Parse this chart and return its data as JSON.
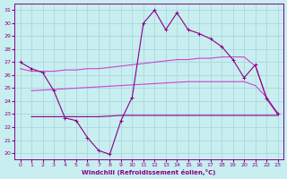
{
  "xlabel": "Windchill (Refroidissement éolien,°C)",
  "xlim": [
    -0.5,
    23.5
  ],
  "ylim": [
    19.5,
    31.5
  ],
  "xticks": [
    0,
    1,
    2,
    3,
    4,
    5,
    6,
    7,
    8,
    9,
    10,
    11,
    12,
    13,
    14,
    15,
    16,
    17,
    18,
    19,
    20,
    21,
    22,
    23
  ],
  "yticks": [
    20,
    21,
    22,
    23,
    24,
    25,
    26,
    27,
    28,
    29,
    30,
    31
  ],
  "bg_color": "#c8eef0",
  "grid_color": "#a8d8dc",
  "c_dark": "#880088",
  "c_mid": "#aa22aa",
  "c_light": "#cc44cc",
  "s1_x": [
    0,
    1,
    2,
    3,
    4,
    5,
    6,
    7,
    8,
    9,
    10,
    11,
    12,
    13,
    14,
    15,
    16,
    17,
    18,
    19,
    20,
    21,
    22,
    23
  ],
  "s1_y": [
    27.0,
    26.5,
    26.2,
    24.8,
    22.7,
    22.5,
    21.2,
    20.2,
    19.9,
    22.5,
    24.3,
    30.0,
    31.0,
    29.5,
    30.8,
    29.5,
    29.2,
    28.8,
    28.2,
    27.2,
    25.8,
    26.8,
    24.2,
    23.0
  ],
  "s2_x": [
    0,
    1,
    2,
    3,
    4,
    5,
    6,
    7,
    8,
    9,
    10,
    11,
    12,
    13,
    14,
    15,
    16,
    17,
    18,
    19,
    20,
    21,
    22,
    23
  ],
  "s2_y": [
    26.5,
    26.3,
    26.3,
    26.3,
    26.4,
    26.4,
    26.5,
    26.5,
    26.6,
    26.7,
    26.8,
    26.9,
    27.0,
    27.1,
    27.2,
    27.2,
    27.3,
    27.3,
    27.4,
    27.4,
    27.4,
    26.7,
    24.3,
    23.0
  ],
  "s3_x": [
    1,
    2,
    3,
    4,
    5,
    6,
    7,
    8,
    9,
    10,
    11,
    12,
    13,
    14,
    15,
    16,
    17,
    18,
    19,
    20,
    21,
    22,
    23
  ],
  "s3_y": [
    24.8,
    24.85,
    24.9,
    24.95,
    25.0,
    25.05,
    25.1,
    25.15,
    25.2,
    25.25,
    25.3,
    25.35,
    25.4,
    25.45,
    25.5,
    25.5,
    25.5,
    25.5,
    25.5,
    25.5,
    25.2,
    24.3,
    23.1
  ],
  "s4_x": [
    1,
    2,
    3,
    4,
    5,
    6,
    7,
    8,
    9,
    10,
    11,
    12,
    13,
    14,
    15,
    16,
    17,
    18,
    19,
    20,
    21,
    22,
    23
  ],
  "s4_y": [
    22.8,
    22.8,
    22.8,
    22.8,
    22.8,
    22.8,
    22.8,
    22.85,
    22.9,
    22.9,
    22.9,
    22.9,
    22.9,
    22.9,
    22.9,
    22.9,
    22.9,
    22.9,
    22.9,
    22.9,
    22.9,
    22.9,
    22.9
  ]
}
